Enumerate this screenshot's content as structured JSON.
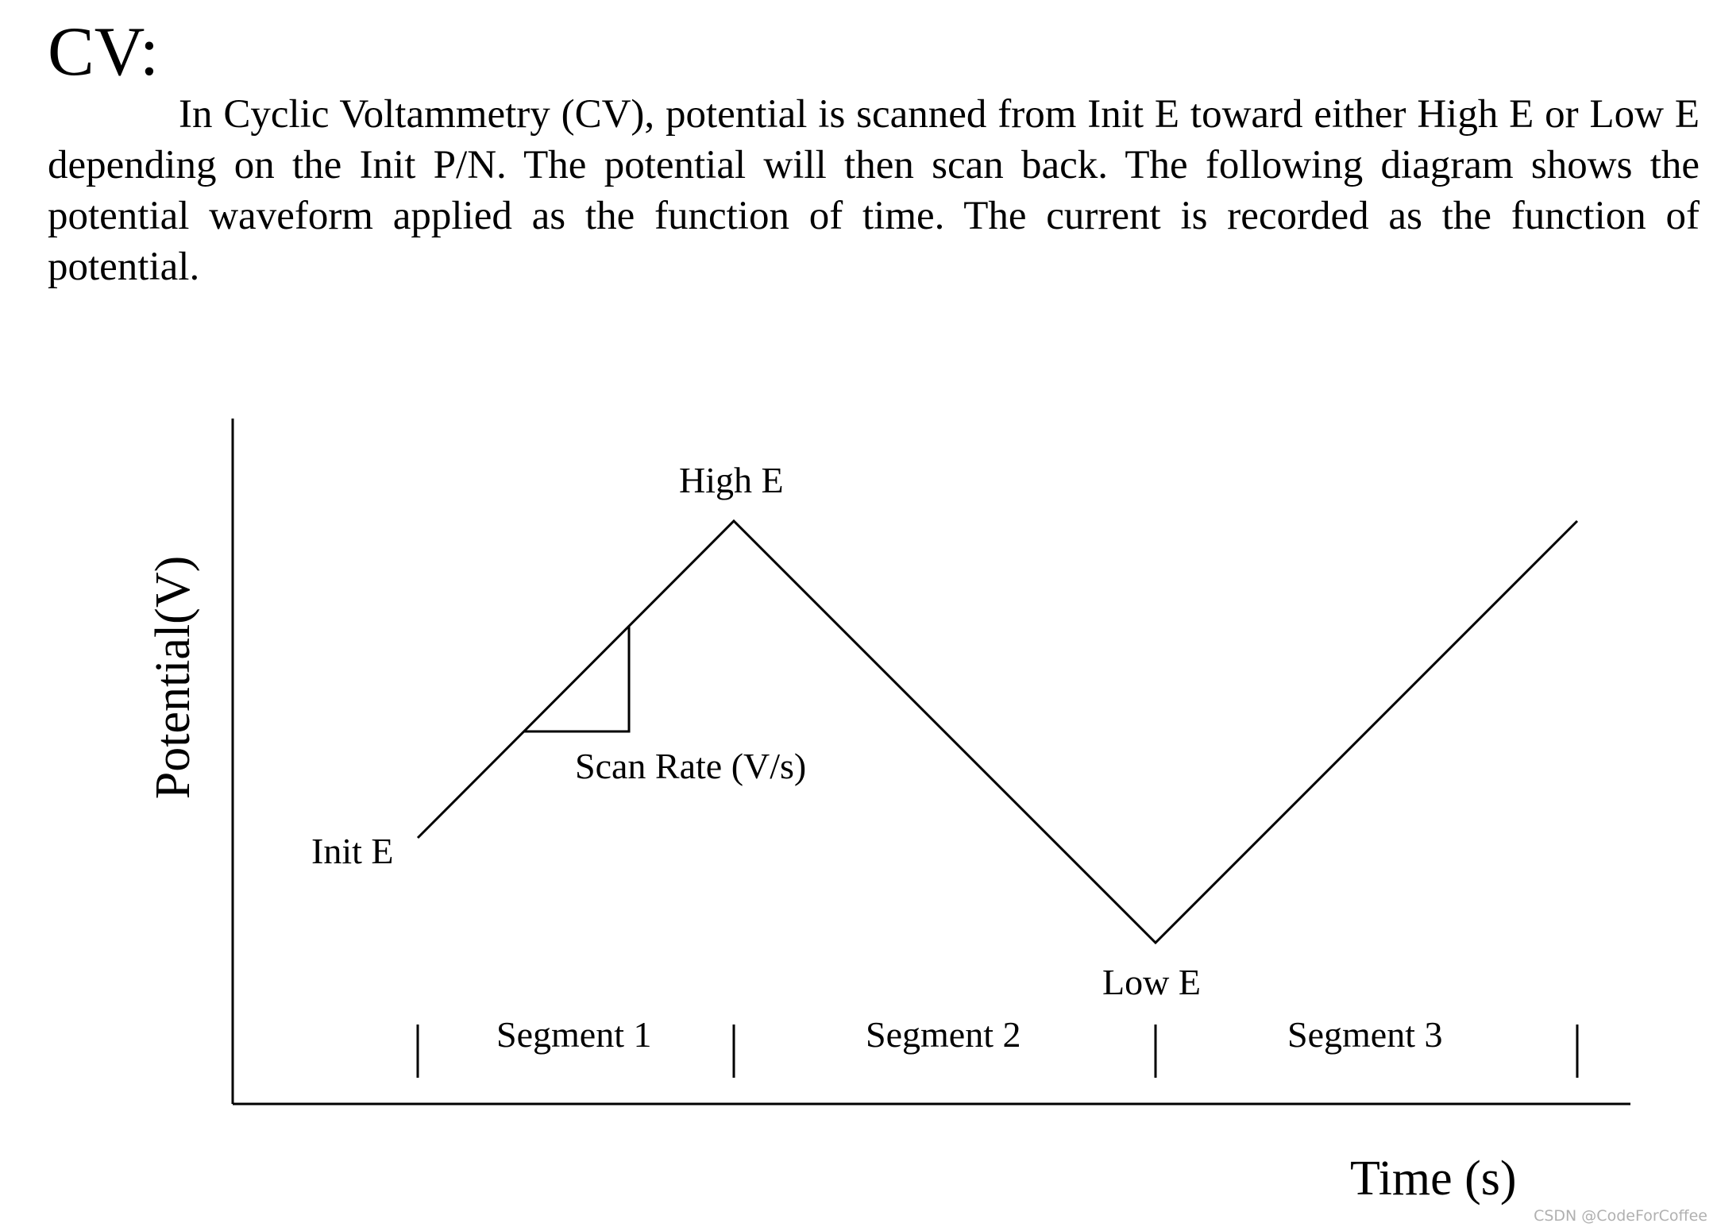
{
  "heading": "CV:",
  "paragraph": "In Cyclic Voltammetry (CV), potential is scanned from Init E toward either High E or Low E depending on the Init P/N. The potential will then scan back. The following diagram shows the potential waveform applied as the function of time.  The current is recorded as the function of potential.",
  "diagram": {
    "y_axis_label": "Potential(V)",
    "x_axis_label": "Time (s)",
    "point_labels": {
      "init": "Init E",
      "high": "High E",
      "low": "Low E"
    },
    "slope_label": "Scan Rate (V/s)",
    "segments": [
      "Segment 1",
      "Segment 2",
      "Segment 3"
    ],
    "line_color": "#000000"
  },
  "watermark": "CSDN @CodeForCoffee"
}
